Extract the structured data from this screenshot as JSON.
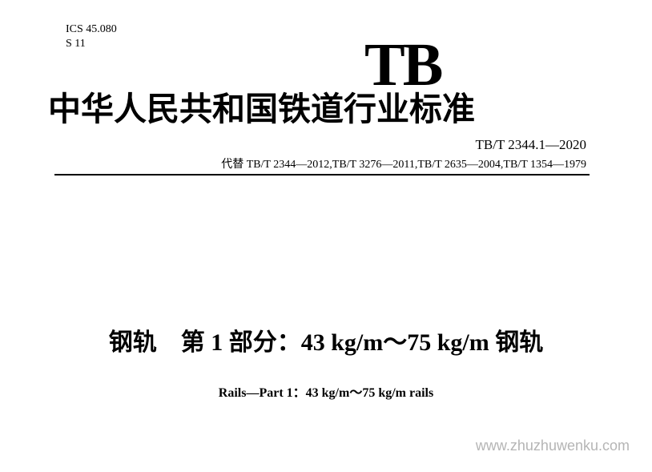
{
  "header": {
    "ics_code": "ICS 45.080",
    "s_code": "S 11"
  },
  "logo": {
    "text": "TB"
  },
  "main_heading": "中华人民共和国铁道行业标准",
  "standard_number": "TB/T 2344.1—2020",
  "replaces": "代替 TB/T 2344—2012,TB/T 3276—2011,TB/T 2635—2004,TB/T 1354—1979",
  "title": {
    "chinese": "钢轨　第 1 部分：43 kg/m～75 kg/m 钢轨",
    "english": "Rails—Part 1：43 kg/m～75 kg/m rails"
  },
  "watermark": "www.zhuzhuwenku.com",
  "styling": {
    "background_color": "#ffffff",
    "text_color": "#000000",
    "watermark_color": "#b5b5b5",
    "logo_fontsize": 76,
    "heading_fontsize": 41,
    "title_cn_fontsize": 30,
    "title_en_fontsize": 16,
    "standard_number_fontsize": 17,
    "replaces_fontsize": 14,
    "codes_fontsize": 14
  }
}
